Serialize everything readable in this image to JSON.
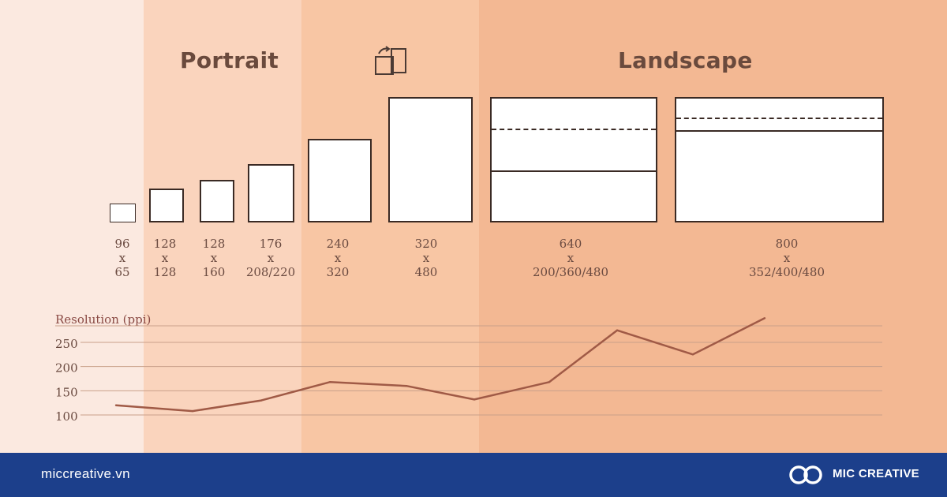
{
  "headings": {
    "portrait": "Portrait",
    "landscape": "Landscape"
  },
  "icons": {
    "rotate": "rotate-orientation-icon",
    "brand": "mic-creative-logo-icon"
  },
  "screens": [
    {
      "w": "96",
      "x": "x",
      "h": "65"
    },
    {
      "w": "128",
      "x": "x",
      "h": "128"
    },
    {
      "w": "128",
      "x": "x",
      "h": "160"
    },
    {
      "w": "176",
      "x": "x",
      "h": "208/220"
    },
    {
      "w": "240",
      "x": "x",
      "h": "320"
    },
    {
      "w": "320",
      "x": "x",
      "h": "480"
    },
    {
      "w": "640",
      "x": "x",
      "h": "200/360/480"
    },
    {
      "w": "800",
      "x": "x",
      "h": "352/400/480"
    }
  ],
  "chart_data": {
    "type": "line",
    "ylabel": "Resolution (ppi)",
    "yticks": [
      100,
      150,
      200,
      250
    ],
    "series": [
      {
        "values": [
          120,
          108,
          130,
          168,
          160,
          132,
          168,
          275,
          225,
          300
        ]
      }
    ],
    "grid": true
  },
  "footer": {
    "website": "miccreative.vn",
    "brand": "MIC CREATIVE"
  },
  "colors": {
    "footer": "#1c3f8b",
    "line": "#a05a46"
  }
}
